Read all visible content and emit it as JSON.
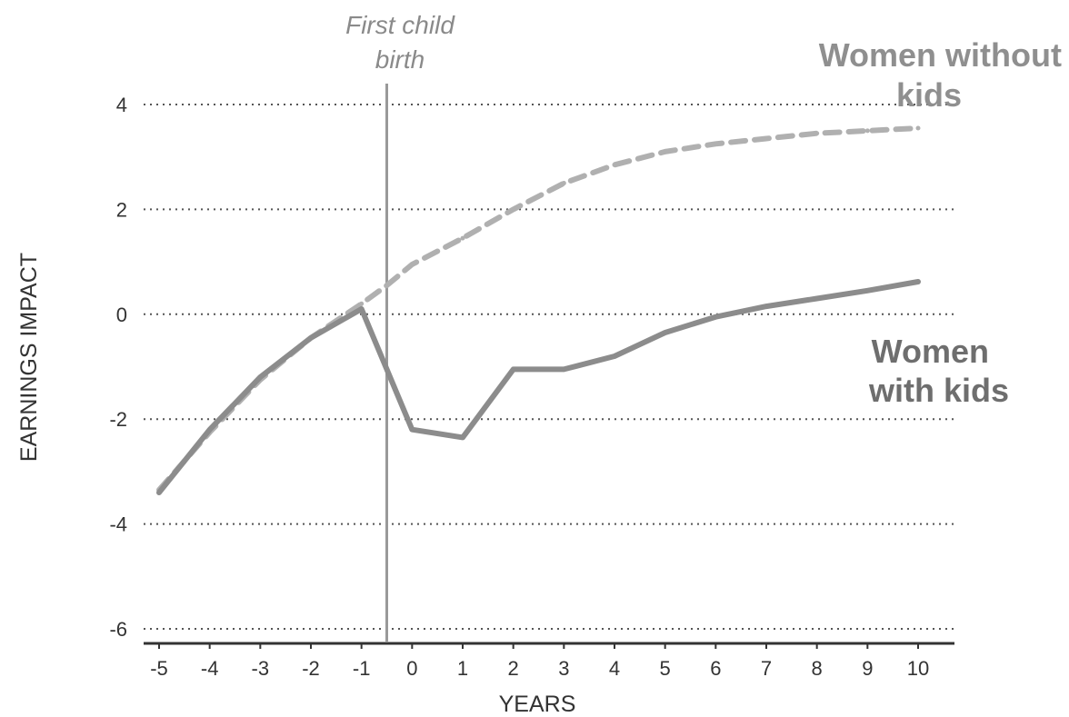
{
  "chart_data": {
    "type": "line",
    "title": "",
    "xlabel": "YEARS",
    "ylabel": "EARNINGS IMPACT",
    "x_ticks": [
      "-5",
      "-4",
      "-3",
      "-2",
      "-1",
      "0",
      "1",
      "2",
      "3",
      "4",
      "5",
      "6",
      "7",
      "8",
      "9",
      "10"
    ],
    "y_ticks": [
      "4",
      "2",
      "0",
      "-2",
      "-4",
      "-6"
    ],
    "xlim": [
      -5,
      10
    ],
    "ylim": [
      -6,
      4
    ],
    "grid": "horizontal dotted",
    "marker": {
      "x": -0.5,
      "label_line1": "First child",
      "label_line2": "birth",
      "color": "#999999"
    },
    "series": [
      {
        "name": "Women with kids",
        "label_line1": "Women",
        "label_line2": "with kids",
        "color": "#8c8c8c",
        "label_color": "#6e6e6e",
        "style": "solid",
        "points": [
          [
            -5,
            -3.4
          ],
          [
            -4,
            -2.2
          ],
          [
            -3,
            -1.2
          ],
          [
            -2,
            -0.45
          ],
          [
            -1,
            0.1
          ],
          [
            0,
            -2.2
          ],
          [
            1,
            -2.35
          ],
          [
            2,
            -1.05
          ],
          [
            3,
            -1.05
          ],
          [
            4,
            -0.8
          ],
          [
            5,
            -0.35
          ],
          [
            6,
            -0.05
          ],
          [
            7,
            0.15
          ],
          [
            8,
            0.3
          ],
          [
            9,
            0.45
          ],
          [
            10,
            0.62
          ]
        ]
      },
      {
        "name": "Women without kids",
        "label_line1": "Women without",
        "label_line2": "kids",
        "color": "#b0b0b0",
        "label_color": "#8f8f8f",
        "style": "dashed",
        "points": [
          [
            -5,
            -3.35
          ],
          [
            -4,
            -2.25
          ],
          [
            -3,
            -1.25
          ],
          [
            -2,
            -0.45
          ],
          [
            -1,
            0.2
          ],
          [
            -0.5,
            0.55
          ],
          [
            0,
            0.95
          ],
          [
            1,
            1.45
          ],
          [
            2,
            2.0
          ],
          [
            3,
            2.5
          ],
          [
            4,
            2.85
          ],
          [
            5,
            3.1
          ],
          [
            6,
            3.25
          ],
          [
            7,
            3.35
          ],
          [
            8,
            3.45
          ],
          [
            9,
            3.5
          ],
          [
            10,
            3.55
          ]
        ]
      }
    ]
  }
}
